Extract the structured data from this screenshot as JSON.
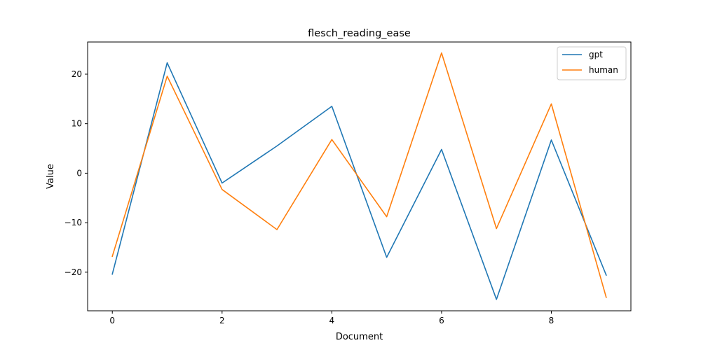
{
  "chart_data": {
    "type": "line",
    "title": "flesch_reading_ease",
    "xlabel": "Document",
    "ylabel": "Value",
    "x": [
      0,
      1,
      2,
      3,
      4,
      5,
      6,
      7,
      8,
      9
    ],
    "xlim": [
      -0.45,
      9.45
    ],
    "ylim": [
      -27.8,
      26.5
    ],
    "xticks": [
      0,
      2,
      4,
      6,
      8
    ],
    "yticks": [
      -20,
      -10,
      0,
      10,
      20
    ],
    "grid": false,
    "legend_position": "top-right",
    "series": [
      {
        "name": "gpt",
        "color": "#1f77b4",
        "values": [
          -20.4,
          22.3,
          -2.0,
          5.5,
          13.5,
          -17.0,
          4.8,
          -25.5,
          6.7,
          -20.6
        ]
      },
      {
        "name": "human",
        "color": "#ff7f0e",
        "values": [
          -16.8,
          19.6,
          -3.3,
          -11.4,
          6.8,
          -8.8,
          24.3,
          -11.2,
          14.0,
          -25.1
        ]
      }
    ]
  }
}
